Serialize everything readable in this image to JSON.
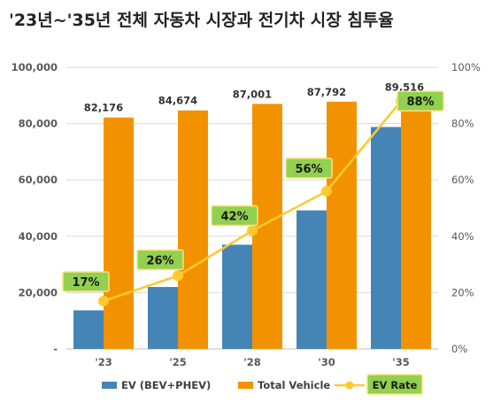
{
  "chart_data": {
    "type": "bar",
    "title": "'23년~'35년 전체 자동차 시장과 전기차 시장 침투율",
    "categories": [
      "'23",
      "'25",
      "'28",
      "'30",
      "'35"
    ],
    "series": [
      {
        "name": "EV (BEV+PHEV)",
        "type": "bar",
        "axis": "left",
        "color": "#4585b6",
        "values": [
          13700,
          22000,
          37000,
          49200,
          78800
        ]
      },
      {
        "name": "Total Vehicle",
        "type": "bar",
        "axis": "left",
        "color": "#f39200",
        "values": [
          82176,
          84674,
          87001,
          87792,
          89516
        ],
        "labels": [
          "82,176",
          "84,674",
          "87,001",
          "87,792",
          "89,516"
        ]
      },
      {
        "name": "EV Rate",
        "type": "line",
        "axis": "right",
        "color": "#ffc82c",
        "values": [
          17,
          26,
          42,
          56,
          88
        ],
        "labels": [
          "17%",
          "26%",
          "42%",
          "56%",
          "88%"
        ]
      }
    ],
    "y_left": {
      "min": 0,
      "max": 100000,
      "ticks": [
        {
          "value": 0,
          "label": "-"
        },
        {
          "value": 20000,
          "label": "20,000"
        },
        {
          "value": 40000,
          "label": "40,000"
        },
        {
          "value": 60000,
          "label": "60,000"
        },
        {
          "value": 80000,
          "label": "80,000"
        },
        {
          "value": 100000,
          "label": "100,000"
        }
      ]
    },
    "y_right": {
      "min": 0,
      "max": 100,
      "ticks": [
        {
          "value": 0,
          "label": "0%"
        },
        {
          "value": 20,
          "label": "20%"
        },
        {
          "value": 40,
          "label": "40%"
        },
        {
          "value": 60,
          "label": "60%"
        },
        {
          "value": 80,
          "label": "80%"
        },
        {
          "value": 100,
          "label": "100%"
        }
      ]
    },
    "grid": true,
    "legend": "bottom",
    "label_box_color": "#92d050"
  }
}
